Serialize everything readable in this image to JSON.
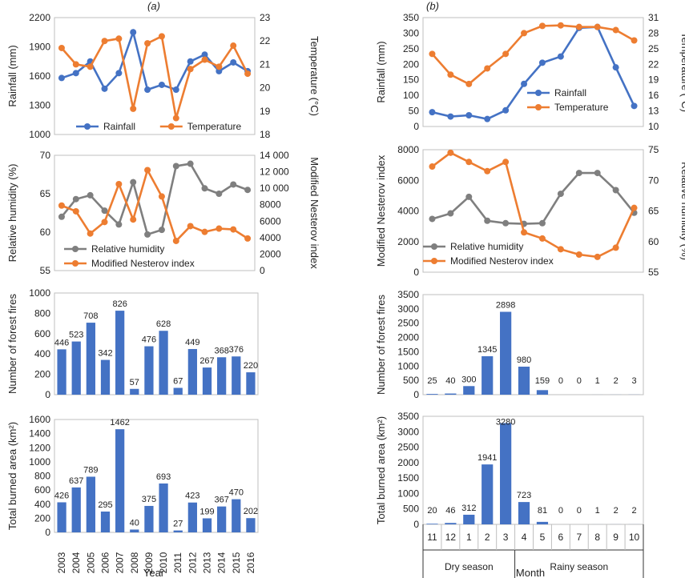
{
  "panel_labels": {
    "a": "(a)",
    "b": "(b)"
  },
  "xlabels": {
    "a": "Year",
    "b": "Month"
  },
  "seasons": {
    "dry": "Dry season",
    "rainy": "Rainy season"
  },
  "colors": {
    "blue": "#4472C4",
    "orange": "#ED7D31",
    "gray": "#7F7F7F"
  },
  "chart_data": [
    {
      "id": "a1",
      "type": "line",
      "categories": [
        "2003",
        "2004",
        "2005",
        "2006",
        "2007",
        "2008",
        "2009",
        "2010",
        "2011",
        "2012",
        "2013",
        "2014",
        "2015",
        "2016"
      ],
      "ylabel": "Rainfall (mm)",
      "y2label": "Temperature (°C)",
      "ylim": [
        1000,
        2200
      ],
      "yticks": [
        "1000",
        "1300",
        "1600",
        "1900",
        "2200"
      ],
      "y2lim": [
        18,
        23
      ],
      "y2ticks": [
        "18",
        "19",
        "20",
        "21",
        "22",
        "23"
      ],
      "series": [
        {
          "name": "Rainfall",
          "axis": "left",
          "color": "#4472C4",
          "values": [
            1580,
            1630,
            1750,
            1470,
            1630,
            2050,
            1460,
            1510,
            1460,
            1750,
            1820,
            1650,
            1740,
            1650
          ]
        },
        {
          "name": "Temperature",
          "axis": "right",
          "color": "#ED7D31",
          "values": [
            21.7,
            21.0,
            20.9,
            22.0,
            22.1,
            19.1,
            21.9,
            22.2,
            18.7,
            20.8,
            21.2,
            20.9,
            21.8,
            20.6
          ]
        }
      ],
      "legend": "bottom"
    },
    {
      "id": "a2",
      "type": "line",
      "categories": [
        "2003",
        "2004",
        "2005",
        "2006",
        "2007",
        "2008",
        "2009",
        "2010",
        "2011",
        "2012",
        "2013",
        "2014",
        "2015",
        "2016"
      ],
      "ylabel": "Relative humidity (%)",
      "y2label": "Modified Nesterov index",
      "ylim": [
        55,
        70
      ],
      "yticks": [
        "55",
        "60",
        "65",
        "70"
      ],
      "y2lim": [
        0,
        14000
      ],
      "y2ticks": [
        "0",
        "2000",
        "4000",
        "6000",
        "8000",
        "10 000",
        "12 000",
        "14 000"
      ],
      "series": [
        {
          "name": "Relative humidity",
          "axis": "left",
          "color": "#7F7F7F",
          "values": [
            62.0,
            64.3,
            64.8,
            62.8,
            61.0,
            66.5,
            59.7,
            60.3,
            68.6,
            68.9,
            65.7,
            65.0,
            66.2,
            65.5
          ]
        },
        {
          "name": "Modified Nesterov index",
          "axis": "right",
          "color": "#ED7D31",
          "values": [
            7900,
            7200,
            4500,
            5900,
            10500,
            6200,
            12200,
            9000,
            3600,
            5400,
            4700,
            5100,
            5000,
            3900
          ]
        }
      ],
      "legend": "bottom-left"
    },
    {
      "id": "a3",
      "type": "bar",
      "categories": [
        "2003",
        "2004",
        "2005",
        "2006",
        "2007",
        "2008",
        "2009",
        "2010",
        "2011",
        "2012",
        "2013",
        "2014",
        "2015",
        "2016"
      ],
      "ylabel": "Number of forest fires",
      "ylim": [
        0,
        1000
      ],
      "yticks": [
        "0",
        "200",
        "400",
        "600",
        "800",
        "1000"
      ],
      "values": [
        446,
        523,
        708,
        342,
        826,
        57,
        476,
        628,
        67,
        449,
        267,
        368,
        376,
        220
      ],
      "labels": [
        "446",
        "523",
        "708",
        "342",
        "826",
        "57",
        "476",
        "628",
        "67",
        "449",
        "267",
        "368",
        "376",
        "220"
      ]
    },
    {
      "id": "a4",
      "type": "bar",
      "categories": [
        "2003",
        "2004",
        "2005",
        "2006",
        "2007",
        "2008",
        "2009",
        "2010",
        "2011",
        "2012",
        "2013",
        "2014",
        "2015",
        "2016"
      ],
      "ylabel": "Total burned area (km²)",
      "ylim": [
        0,
        1600
      ],
      "yticks": [
        "0",
        "200",
        "400",
        "600",
        "800",
        "1000",
        "1200",
        "1400",
        "1600"
      ],
      "values": [
        426,
        637,
        789,
        295,
        1462,
        40,
        375,
        693,
        27,
        423,
        199,
        367,
        470,
        202
      ],
      "labels": [
        "426",
        "637",
        "789",
        "295",
        "1462",
        "40",
        "375",
        "693",
        "27",
        "423",
        "199",
        "367",
        "470",
        "202"
      ]
    },
    {
      "id": "b1",
      "type": "line",
      "categories": [
        "11",
        "12",
        "1",
        "2",
        "3",
        "4",
        "5",
        "6",
        "7",
        "8",
        "9",
        "10"
      ],
      "ylabel": "Rainfall (mm)",
      "y2label": "Temperature (°C)",
      "ylim": [
        0,
        350
      ],
      "yticks": [
        "0",
        "50",
        "100",
        "150",
        "200",
        "250",
        "300",
        "350"
      ],
      "y2lim": [
        10,
        31
      ],
      "y2ticks": [
        "10",
        "13",
        "16",
        "19",
        "22",
        "25",
        "28",
        "31"
      ],
      "series": [
        {
          "name": "Rainfall",
          "axis": "left",
          "color": "#4472C4",
          "values": [
            46,
            32,
            36,
            24,
            52,
            137,
            205,
            225,
            317,
            320,
            190,
            66
          ]
        },
        {
          "name": "Temperature",
          "axis": "right",
          "color": "#ED7D31",
          "values": [
            24.0,
            20.0,
            18.2,
            21.2,
            24.0,
            28.0,
            29.4,
            29.5,
            29.2,
            29.2,
            28.6,
            26.6
          ]
        }
      ],
      "legend": "bottom-center"
    },
    {
      "id": "b2",
      "type": "line",
      "categories": [
        "11",
        "12",
        "1",
        "2",
        "3",
        "4",
        "5",
        "6",
        "7",
        "8",
        "9",
        "10"
      ],
      "ylabel": "Modified Nesterov index",
      "y2label": "Relative humidity (%)",
      "ylim": [
        0,
        8000
      ],
      "yticks": [
        "0",
        "2000",
        "4000",
        "6000",
        "8000"
      ],
      "y2lim": [
        55,
        75
      ],
      "y2ticks": [
        "55",
        "60",
        "65",
        "70",
        "75"
      ],
      "series": [
        {
          "name": "Relative humidity",
          "axis": "right",
          "color": "#7F7F7F",
          "values": [
            63.7,
            64.6,
            67.3,
            63.4,
            63.0,
            62.9,
            63.0,
            67.8,
            71.2,
            71.2,
            68.4,
            64.7
          ]
        },
        {
          "name": "Modified Nesterov index",
          "axis": "left",
          "color": "#ED7D31",
          "values": [
            6900,
            7800,
            7200,
            6600,
            7200,
            2600,
            2200,
            1500,
            1150,
            1000,
            1600,
            4200
          ]
        }
      ],
      "legend": "bottom-center"
    },
    {
      "id": "b3",
      "type": "bar",
      "categories": [
        "11",
        "12",
        "1",
        "2",
        "3",
        "4",
        "5",
        "6",
        "7",
        "8",
        "9",
        "10"
      ],
      "ylabel": "Number of forest fires",
      "ylim": [
        0,
        3500
      ],
      "yticks": [
        "0",
        "500",
        "1000",
        "1500",
        "2000",
        "2500",
        "3000",
        "3500"
      ],
      "values": [
        25,
        40,
        300,
        1345,
        2898,
        980,
        159,
        0,
        0,
        1,
        2,
        3
      ],
      "labels": [
        "25",
        "40",
        "300",
        "1345",
        "2898",
        "980",
        "159",
        "0",
        "0",
        "1",
        "2",
        "3"
      ]
    },
    {
      "id": "b4",
      "type": "bar",
      "categories": [
        "11",
        "12",
        "1",
        "2",
        "3",
        "4",
        "5",
        "6",
        "7",
        "8",
        "9",
        "10"
      ],
      "ylabel": "Total burned area (km²)",
      "ylim": [
        0,
        3500
      ],
      "yticks": [
        "0",
        "500",
        "1000",
        "1500",
        "2000",
        "2500",
        "3000",
        "3500"
      ],
      "values": [
        20,
        46,
        312,
        1941,
        3280,
        723,
        81,
        0,
        0,
        1,
        2,
        2
      ],
      "labels": [
        "20",
        "46",
        "312",
        "1941",
        "3280",
        "723",
        "81",
        "0",
        "0",
        "1",
        "2",
        "2"
      ]
    }
  ]
}
